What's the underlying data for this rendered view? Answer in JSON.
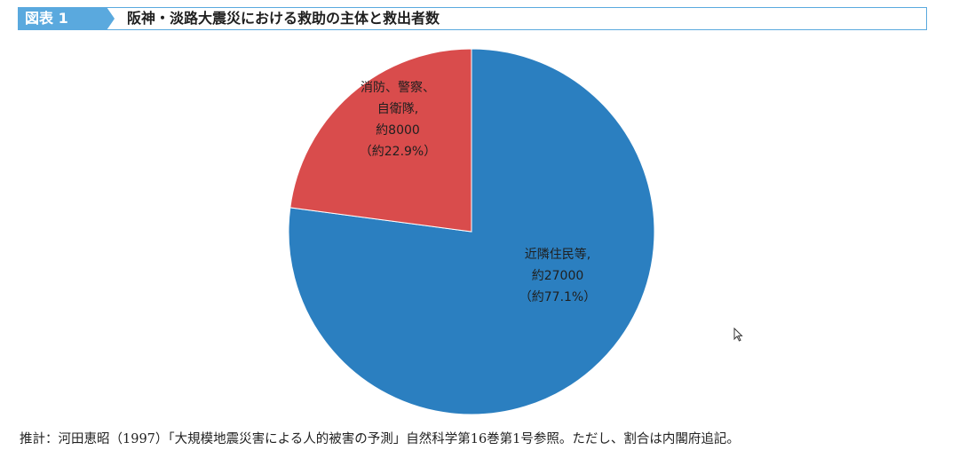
{
  "header": {
    "figure_label": "図表 1",
    "title": "阪神・淡路大震災における救助の主体と救出者数"
  },
  "chart_data": {
    "type": "pie",
    "title": "阪神・淡路大震災における救助の主体と救出者数",
    "slices": [
      {
        "name": "近隣住民等,",
        "value": 27000,
        "value_label": "約27000",
        "percent_label": "（約77.1%）",
        "percent": 77.1,
        "color": "#2b7fc0"
      },
      {
        "name": "消防、警察、自衛隊,",
        "value": 8000,
        "value_label": "約8000",
        "percent_label": "（約22.9%）",
        "percent": 22.9,
        "color": "#d94c4c"
      }
    ],
    "slice_label_lines": [
      [
        "近隣住民等,",
        "約27000",
        "（約77.1%）"
      ],
      [
        "消防、警察、",
        "自衛隊,",
        "約8000",
        "（約22.9%）"
      ]
    ]
  },
  "footer": {
    "source": "推計：河田恵昭（1997）「大規模地震災害による人的被害の予測」自然科学第16巻第1号参照。ただし、割合は内閣府追記。"
  }
}
